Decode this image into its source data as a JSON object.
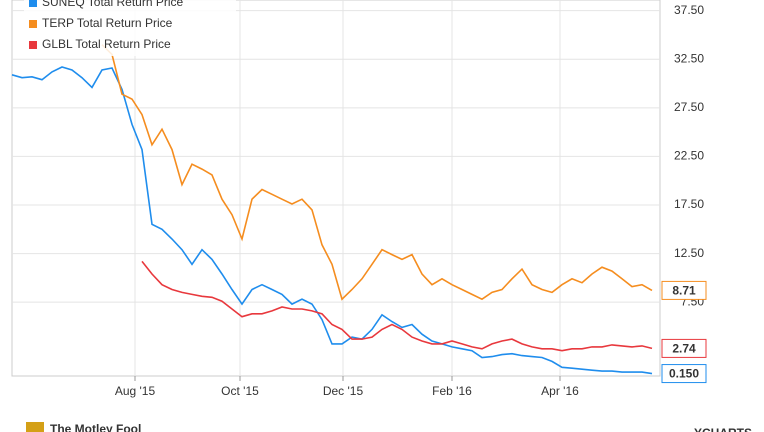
{
  "chart_data": {
    "type": "line",
    "x": [
      0,
      1,
      2,
      3,
      4,
      5,
      6,
      7,
      8,
      9,
      10,
      11,
      12,
      13,
      14,
      15,
      16,
      17,
      18,
      19,
      20,
      21,
      22,
      23,
      24,
      25,
      26,
      27,
      28,
      29,
      30,
      31,
      32,
      33,
      34,
      35,
      36,
      37,
      38,
      39,
      40,
      41,
      42,
      43,
      44,
      45,
      46,
      47,
      48,
      49,
      50,
      51,
      52,
      53,
      54,
      55,
      56,
      57,
      58,
      59,
      60,
      61,
      62,
      63,
      64
    ],
    "xlim": [
      0,
      64.8
    ],
    "xticks": [
      {
        "value": 12.3,
        "label": "Aug '15"
      },
      {
        "value": 22.8,
        "label": "Oct '15"
      },
      {
        "value": 33.1,
        "label": "Dec '15"
      },
      {
        "value": 44.0,
        "label": "Feb '16"
      },
      {
        "value": 54.8,
        "label": "Apr '16"
      }
    ],
    "ylim": [
      -0.1,
      38.6
    ],
    "yticks": [
      {
        "value": 7.5,
        "label": "7.50"
      },
      {
        "value": 12.5,
        "label": "12.50"
      },
      {
        "value": 17.5,
        "label": "17.50"
      },
      {
        "value": 22.5,
        "label": "22.50"
      },
      {
        "value": 27.5,
        "label": "27.50"
      },
      {
        "value": 32.5,
        "label": "32.50"
      },
      {
        "value": 37.5,
        "label": "37.50"
      }
    ],
    "grid": true,
    "legend": "top-left",
    "series": [
      {
        "name": "SUNEQ Total Return Price",
        "color": "#1f8ded",
        "last_label": "0.150",
        "values": [
          30.9,
          30.6,
          30.7,
          30.4,
          31.2,
          31.7,
          31.4,
          30.6,
          29.6,
          31.4,
          31.6,
          29.4,
          25.8,
          23.2,
          15.5,
          15.0,
          14.0,
          12.9,
          11.4,
          12.9,
          11.9,
          10.4,
          8.8,
          7.3,
          8.8,
          9.3,
          8.8,
          8.3,
          7.3,
          7.8,
          7.3,
          5.7,
          3.2,
          3.2,
          3.9,
          3.7,
          4.7,
          6.2,
          5.5,
          4.9,
          5.2,
          4.2,
          3.5,
          3.2,
          2.9,
          2.7,
          2.5,
          1.8,
          1.9,
          2.1,
          2.2,
          2.0,
          1.9,
          1.8,
          1.4,
          0.8,
          0.7,
          0.6,
          0.5,
          0.4,
          0.4,
          0.3,
          0.3,
          0.3,
          0.15
        ]
      },
      {
        "name": "TERP Total Return Price",
        "color": "#f58d1f",
        "last_label": "8.71",
        "values": [
          null,
          null,
          null,
          null,
          null,
          null,
          null,
          null,
          null,
          34.0,
          33.0,
          28.9,
          28.4,
          26.8,
          23.7,
          25.3,
          23.2,
          19.6,
          21.7,
          21.2,
          20.6,
          18.1,
          16.5,
          14.0,
          18.1,
          19.1,
          18.6,
          18.1,
          17.6,
          18.1,
          17.0,
          13.4,
          11.4,
          7.8,
          8.8,
          9.9,
          11.4,
          12.9,
          12.4,
          11.9,
          12.4,
          10.4,
          9.3,
          9.9,
          9.3,
          8.8,
          8.3,
          7.8,
          8.5,
          8.8,
          9.9,
          10.9,
          9.3,
          8.8,
          8.5,
          9.3,
          9.9,
          9.5,
          10.4,
          11.1,
          10.7,
          9.9,
          9.1,
          9.3,
          8.71
        ]
      },
      {
        "name": "GLBL Total Return Price",
        "color": "#e8383d",
        "last_label": "2.74",
        "values": [
          null,
          null,
          null,
          null,
          null,
          null,
          null,
          null,
          null,
          null,
          null,
          null,
          null,
          11.7,
          10.4,
          9.3,
          8.8,
          8.5,
          8.3,
          8.1,
          8.0,
          7.6,
          6.8,
          6.0,
          6.3,
          6.3,
          6.6,
          7.0,
          6.8,
          6.8,
          6.6,
          6.3,
          5.2,
          4.7,
          3.7,
          3.7,
          3.9,
          4.7,
          5.2,
          4.7,
          3.9,
          3.5,
          3.2,
          3.2,
          3.5,
          3.2,
          2.9,
          2.7,
          3.2,
          3.5,
          3.7,
          3.2,
          2.9,
          2.7,
          2.7,
          2.5,
          2.7,
          2.7,
          2.9,
          2.9,
          3.1,
          3.0,
          2.9,
          3.0,
          2.74
        ]
      }
    ],
    "footer": {
      "left": "The Motley Fool",
      "right": "YCHARTS"
    }
  }
}
